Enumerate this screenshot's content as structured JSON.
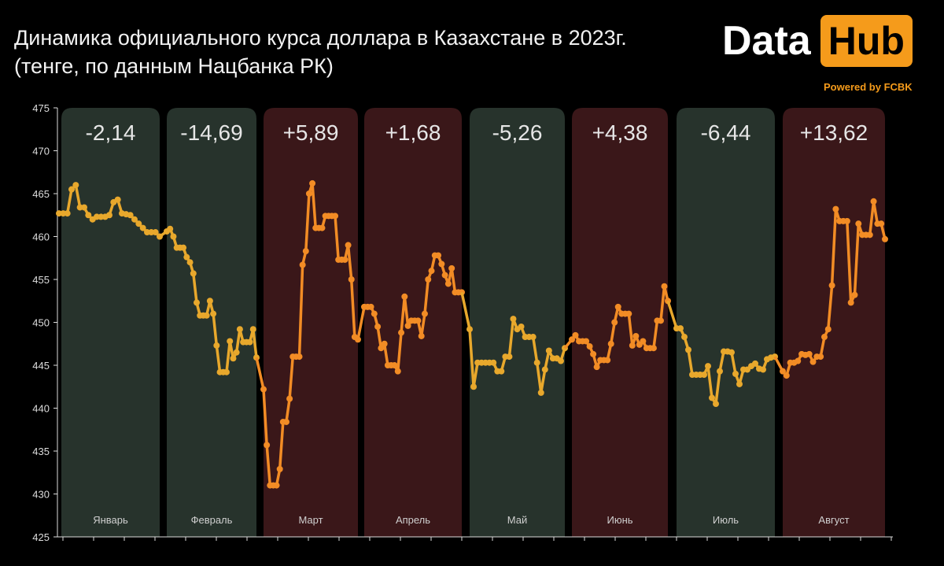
{
  "logo": {
    "word1": "Data",
    "word2": "Hub",
    "tagline": "Powered by FCBK"
  },
  "chart_data": {
    "type": "line",
    "title": "Динамика официального курса доллара в Казахстане в 2023г. (тенге, по данным Нацбанка РК)",
    "xlabel": "",
    "ylabel": "",
    "ylim": [
      425,
      475
    ],
    "yticks": [
      425,
      430,
      435,
      440,
      445,
      450,
      455,
      460,
      465,
      470,
      475
    ],
    "grid": false,
    "colors": {
      "down_panel": "#27332c",
      "up_panel": "#3a1719",
      "down_line": "#e8a82c",
      "up_line": "#f28c25"
    },
    "months": [
      {
        "label": "Январь",
        "change": "-2,14",
        "direction": "down",
        "values": [
          462.7,
          462.7,
          462.7,
          465.5,
          466,
          463.4,
          463.4,
          462.5,
          462,
          462.3,
          462.3,
          462.3,
          462.5,
          464,
          464.3,
          462.7,
          462.6,
          462.5,
          462,
          461.5,
          461,
          460.5,
          460.5,
          460.5,
          460
        ]
      },
      {
        "label": "Февраль",
        "change": "-14,69",
        "direction": "down",
        "values": [
          460.6,
          460.9,
          460,
          458.7,
          458.7,
          458.7,
          457.6,
          457,
          455.7,
          452.3,
          450.8,
          450.8,
          450.8,
          452.5,
          451,
          447.3,
          444.2,
          444.2,
          444.2,
          447.8,
          445.8,
          446.5,
          449.2,
          447.7,
          447.7,
          447.7,
          449.2,
          445.9
        ]
      },
      {
        "label": "Март",
        "change": "+5,89",
        "direction": "up",
        "values": [
          442.2,
          435.7,
          431,
          431,
          431,
          432.9,
          438.4,
          438.4,
          441.1,
          446,
          446,
          446,
          456.7,
          458.3,
          465,
          466.2,
          461,
          461,
          461,
          462.4,
          462.4,
          462.4,
          462.4,
          457.3,
          457.3,
          457.3,
          459,
          455,
          448.3,
          448
        ]
      },
      {
        "label": "Апрель",
        "change": "+1,68",
        "direction": "up",
        "values": [
          451.8,
          451.8,
          451.8,
          451,
          449.5,
          447,
          447.5,
          445,
          445,
          445,
          444.3,
          448.8,
          453,
          449.6,
          450.2,
          450.2,
          450.2,
          448.4,
          451,
          455,
          456,
          457.8,
          457.8,
          456.8,
          455.5,
          454.5,
          456.3,
          453.5,
          453.5,
          453.5
        ]
      },
      {
        "label": "Май",
        "change": "-5,26",
        "direction": "down",
        "values": [
          449.2,
          442.5,
          445.3,
          445.3,
          445.3,
          445.3,
          445.3,
          444.3,
          444.3,
          446,
          446,
          450.4,
          449.2,
          449.5,
          448.3,
          448.3,
          448.3,
          445.3,
          441.8,
          444.5,
          446.7,
          445.8,
          445.8,
          445.5,
          447
        ]
      },
      {
        "label": "Июнь",
        "change": "+4,38",
        "direction": "up",
        "values": [
          448,
          448.5,
          447.8,
          447.8,
          447.8,
          447.2,
          446.3,
          444.8,
          445.6,
          445.6,
          445.6,
          447.5,
          450,
          451.8,
          451,
          451,
          451,
          447.3,
          448.4,
          447.4,
          447.8,
          447,
          447,
          447,
          450.2,
          450.2,
          454.2,
          452.5
        ]
      },
      {
        "label": "Июль",
        "change": "-6,44",
        "direction": "down",
        "values": [
          449.3,
          449.3,
          448.3,
          446.8,
          443.9,
          443.9,
          443.9,
          443.9,
          444.9,
          441.2,
          440.5,
          444.3,
          446.6,
          446.6,
          446.5,
          444,
          442.8,
          444.5,
          444.5,
          444.9,
          445.2,
          444.6,
          444.5,
          445.7,
          445.9,
          446
        ]
      },
      {
        "label": "Август",
        "change": "+13,62",
        "direction": "up",
        "values": [
          444.3,
          443.8,
          445.3,
          445.3,
          445.5,
          446.3,
          446.2,
          446.3,
          445.4,
          446,
          446,
          448.3,
          449.2,
          454.3,
          463.2,
          461.8,
          461.8,
          461.8,
          452.3,
          453.2,
          461.5,
          460.2,
          460.2,
          460.2,
          464.1,
          461.5,
          461.5,
          459.7
        ]
      }
    ]
  }
}
